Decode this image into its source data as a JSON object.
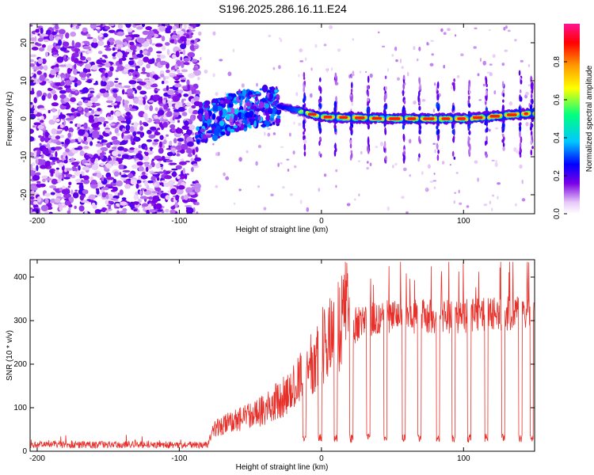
{
  "title": "S196.2025.286.16.11.E24",
  "chart_data": [
    {
      "type": "heatmap",
      "name": "spectrogram",
      "xlabel": "Height of straight line (km)",
      "ylabel": "Frequency (Hz)",
      "xlim": [
        -205,
        150
      ],
      "ylim": [
        -25,
        25
      ],
      "xticks": [
        -200,
        -100,
        0,
        100
      ],
      "yticks": [
        -20,
        -10,
        0,
        10,
        20
      ],
      "colorbar": {
        "label": "Normalized spectral amplitude",
        "range": [
          0.0,
          1.0
        ],
        "ticks": [
          0.0,
          0.2,
          0.4,
          0.6,
          0.8
        ],
        "tick_labels": [
          "0.0",
          "0.2",
          "0.4",
          "0.6",
          "0.8"
        ],
        "colors": [
          "#ffffff",
          "#e7c8f7",
          "#7a00e6",
          "#0000ff",
          "#00c8ff",
          "#00ff7f",
          "#ffff00",
          "#ff9900",
          "#ff0000",
          "#ff1493"
        ]
      },
      "regions": [
        {
          "x_range": [
            -205,
            -87
          ],
          "description_values": {
            "freq_spread_hz": [
              -25,
              25
            ],
            "amplitude": [
              0.05,
              0.2
            ]
          }
        },
        {
          "x_range": [
            -87,
            -30
          ],
          "description_values": {
            "freq_center_hz": [
              0,
              5
            ],
            "amplitude": [
              0.1,
              0.4
            ]
          }
        },
        {
          "x_range": [
            -30,
            150
          ],
          "description_values": {
            "freq_center_hz": [
              0,
              2
            ],
            "amplitude": [
              0.5,
              1.0
            ]
          }
        }
      ],
      "ridge": {
        "x": [
          -87,
          -60,
          -30,
          0,
          50,
          100,
          150
        ],
        "freq_hz": [
          -1.5,
          2,
          3.5,
          0.5,
          0,
          0,
          1.5
        ]
      }
    },
    {
      "type": "line",
      "name": "snr",
      "xlabel": "Height of straight line (km)",
      "ylabel": "SNR (10 * v/v)",
      "xlim": [
        -205,
        150
      ],
      "ylim": [
        0,
        440
      ],
      "xticks": [
        -200,
        -100,
        0,
        100
      ],
      "yticks": [
        0,
        100,
        200,
        300,
        400
      ],
      "color": "#e8302a",
      "envelope": {
        "x": [
          -205,
          -80,
          -75,
          -60,
          -40,
          -20,
          0,
          10,
          20,
          30,
          50,
          100,
          150
        ],
        "y": [
          15,
          15,
          45,
          60,
          80,
          120,
          200,
          240,
          280,
          300,
          310,
          310,
          320
        ]
      },
      "dips_x": [
        -12,
        -1,
        10,
        21,
        33,
        45,
        58,
        69,
        82,
        93,
        104,
        116,
        128,
        140,
        148
      ],
      "dip_level": 20
    }
  ]
}
